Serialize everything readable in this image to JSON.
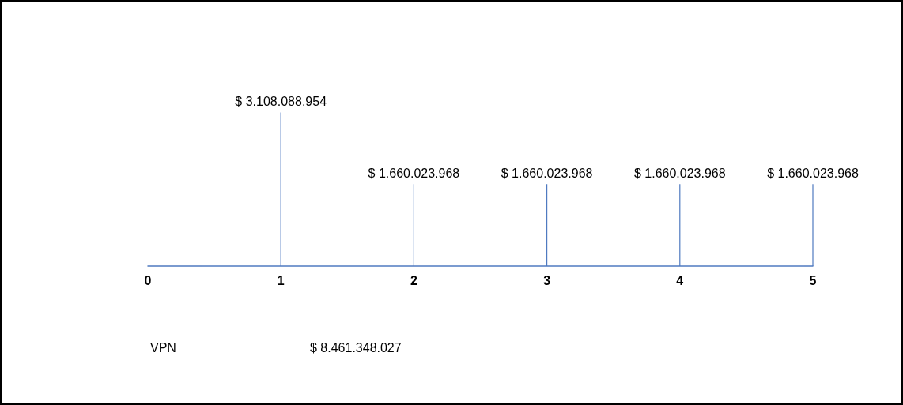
{
  "chart_data": {
    "type": "bar",
    "x": [
      1,
      2,
      3,
      4,
      5
    ],
    "values": [
      3108088954,
      1660023968,
      1660023968,
      1660023968,
      1660023968
    ],
    "value_labels": [
      "$ 3.108.088.954",
      "$ 1.660.023.968",
      "$ 1.660.023.968",
      "$ 1.660.023.968",
      "$ 1.660.023.968"
    ],
    "color": "#4f7ac0",
    "xlim": [
      0,
      5
    ],
    "xticks": [
      0,
      1,
      2,
      3,
      4,
      5
    ],
    "tick_labels": "x",
    "grid": false,
    "annotations": [
      "VPN",
      "$ 8.461.348.027"
    ]
  }
}
